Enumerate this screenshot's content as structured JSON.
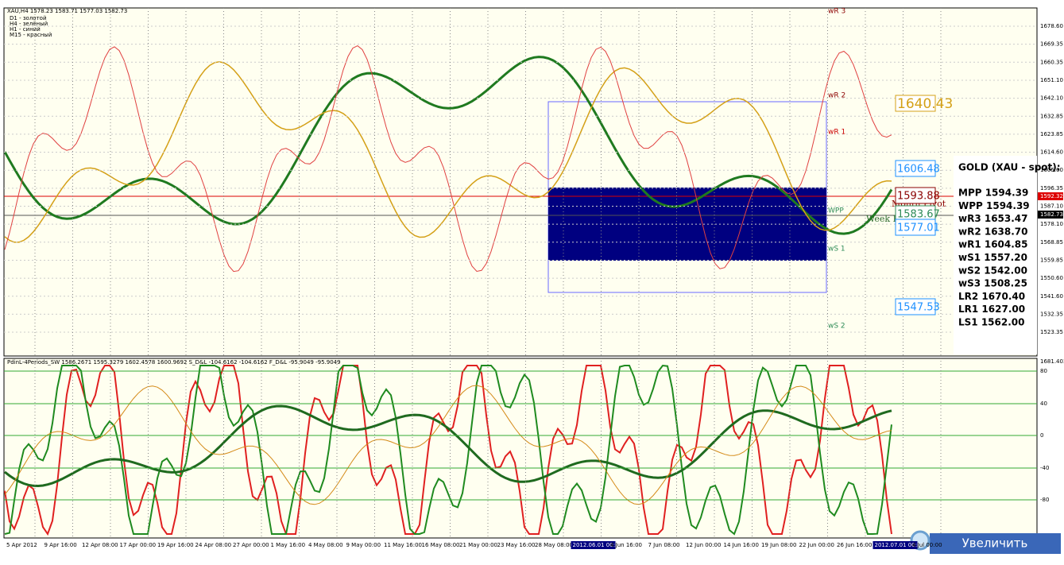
{
  "header": {
    "symbol": "XAU,H4  1578.23 1583.71 1577.03 1582.73",
    "legend": [
      "D1 - золотой",
      "H4 - зелёный",
      "H1 - синий",
      "M15 - красный"
    ]
  },
  "price_axis": [
    "1678.60",
    "1669.35",
    "1660.35",
    "1651.10",
    "1642.10",
    "1632.85",
    "1623.85",
    "1614.60",
    "1605.60",
    "1596.35",
    "1587.10",
    "1578.10",
    "1568.85",
    "1559.85",
    "1550.60",
    "1541.60",
    "1532.35",
    "1523.35"
  ],
  "price_markers": {
    "red": "1592.32",
    "black": "1582.73"
  },
  "pivot_labels": [
    "wR 3",
    "wR 2",
    "wR 1",
    "WPP",
    "wS 1",
    "wS 2",
    "Month Pivot",
    "Week Pivot"
  ],
  "price_boxes": [
    {
      "text": "1640.43",
      "color": "#d4a017"
    },
    {
      "text": "1606.48",
      "color": "#1e90ff"
    },
    {
      "text": "1593.88",
      "color": "#8b0000"
    },
    {
      "text": "1583.67",
      "color": "#2e8b57"
    },
    {
      "text": "1577.01",
      "color": "#1e90ff"
    },
    {
      "text": "1547.53",
      "color": "#1e90ff"
    }
  ],
  "info": {
    "title": "GOLD (XAU - spot):",
    "rows": [
      "MPP 1594.39",
      "WPP 1594.39",
      "wR3 1653.47",
      "wR2 1638.70",
      "wR1 1604.85",
      "wS1 1557.20",
      "wS2 1542.00",
      "wS3 1508.25",
      "LR2 1670.40",
      "LR1 1627.00",
      "LS1 1562.00"
    ]
  },
  "indicator": {
    "header": "PdinL-4Periods_SW 1586.2671 1595.3279 1602.4578 1600.9692  S_D&L -104.6162 -104.6162  F_D&L -95.9049 -95.9049",
    "axis": [
      "1681.403",
      "80",
      "40",
      "0",
      "-40",
      "-80"
    ]
  },
  "date_axis": [
    "5 Apr 2012",
    "9 Apr 16:00",
    "12 Apr 08:00",
    "17 Apr 00:00",
    "19 Apr 16:00",
    "24 Apr 08:00",
    "27 Apr 00:00",
    "1 May 16:00",
    "4 May 08:00",
    "9 May 00:00",
    "11 May 16:00",
    "16 May 08:00",
    "21 May 00:00",
    "23 May 16:00",
    "28 May 08:00",
    "2012.06.01 00:00",
    "4 Jun 16:00",
    "7 Jun 08:00",
    "12 Jun 00:00",
    "14 Jun 16:00",
    "19 Jun 08:00",
    "22 Jun 00:00",
    "26 Jun 16:00",
    "2012.07.01 00:00",
    "4 Jul 00:00"
  ],
  "button": "Увеличить"
}
